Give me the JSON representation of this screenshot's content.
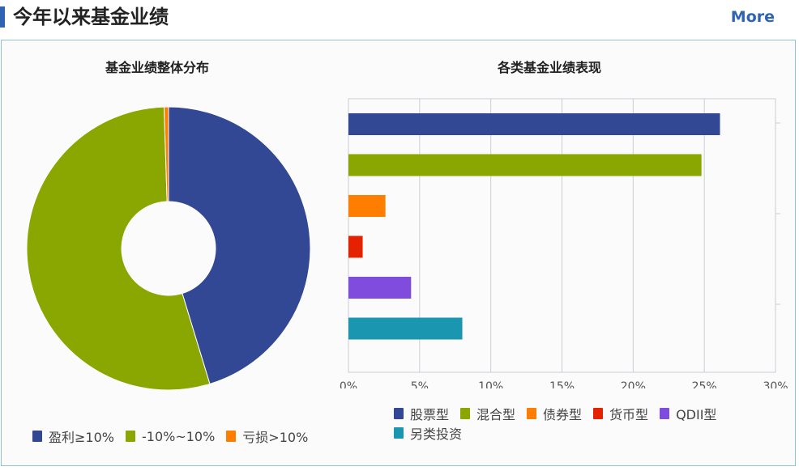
{
  "header": {
    "title": "今年以来基金业绩",
    "more_label": "More"
  },
  "chart_data": [
    {
      "type": "pie",
      "title": "基金业绩整体分布",
      "donut": true,
      "slices": [
        {
          "label": "盈利≥10%",
          "value": 45.3,
          "color": "#334895"
        },
        {
          "label": "-10%~10%",
          "value": 54.2,
          "color": "#8aa600"
        },
        {
          "label": "亏损>10%",
          "value": 0.5,
          "color": "#ff7e00"
        }
      ],
      "legend_position": "bottom"
    },
    {
      "type": "bar",
      "orientation": "horizontal",
      "title": "各类基金业绩表现",
      "categories": [
        "股票型",
        "混合型",
        "债券型",
        "货币型",
        "QDII型",
        "另类投资"
      ],
      "values": [
        26.1,
        24.8,
        2.6,
        1.0,
        4.4,
        8.0
      ],
      "colors": [
        "#334895",
        "#8aa600",
        "#ff7e00",
        "#e52200",
        "#7f4cdd",
        "#1b96b1"
      ],
      "x_ticks": [
        "0%",
        "5%",
        "10%",
        "15%",
        "20%",
        "25%",
        "30%"
      ],
      "xlim": [
        0,
        30
      ],
      "grid": true,
      "legend_position": "bottom"
    }
  ]
}
